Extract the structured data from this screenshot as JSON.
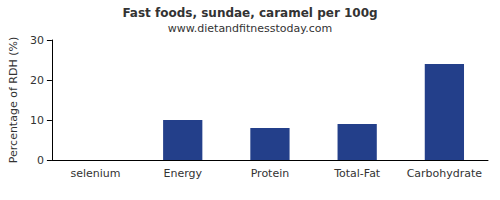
{
  "chart_data": {
    "type": "bar",
    "title": "Fast foods, sundae, caramel per 100g",
    "subtitle": "www.dietandfitnesstoday.com",
    "ylabel": "Percentage of RDH (%)",
    "categories": [
      "selenium",
      "Energy",
      "Protein",
      "Total-Fat",
      "Carbohydrate"
    ],
    "values": [
      0,
      10,
      8,
      9,
      24
    ],
    "color": "#233f8a",
    "ylim": [
      0,
      30
    ],
    "yticks": [
      0,
      10,
      20,
      30
    ],
    "grid": false,
    "data_labels": false
  }
}
